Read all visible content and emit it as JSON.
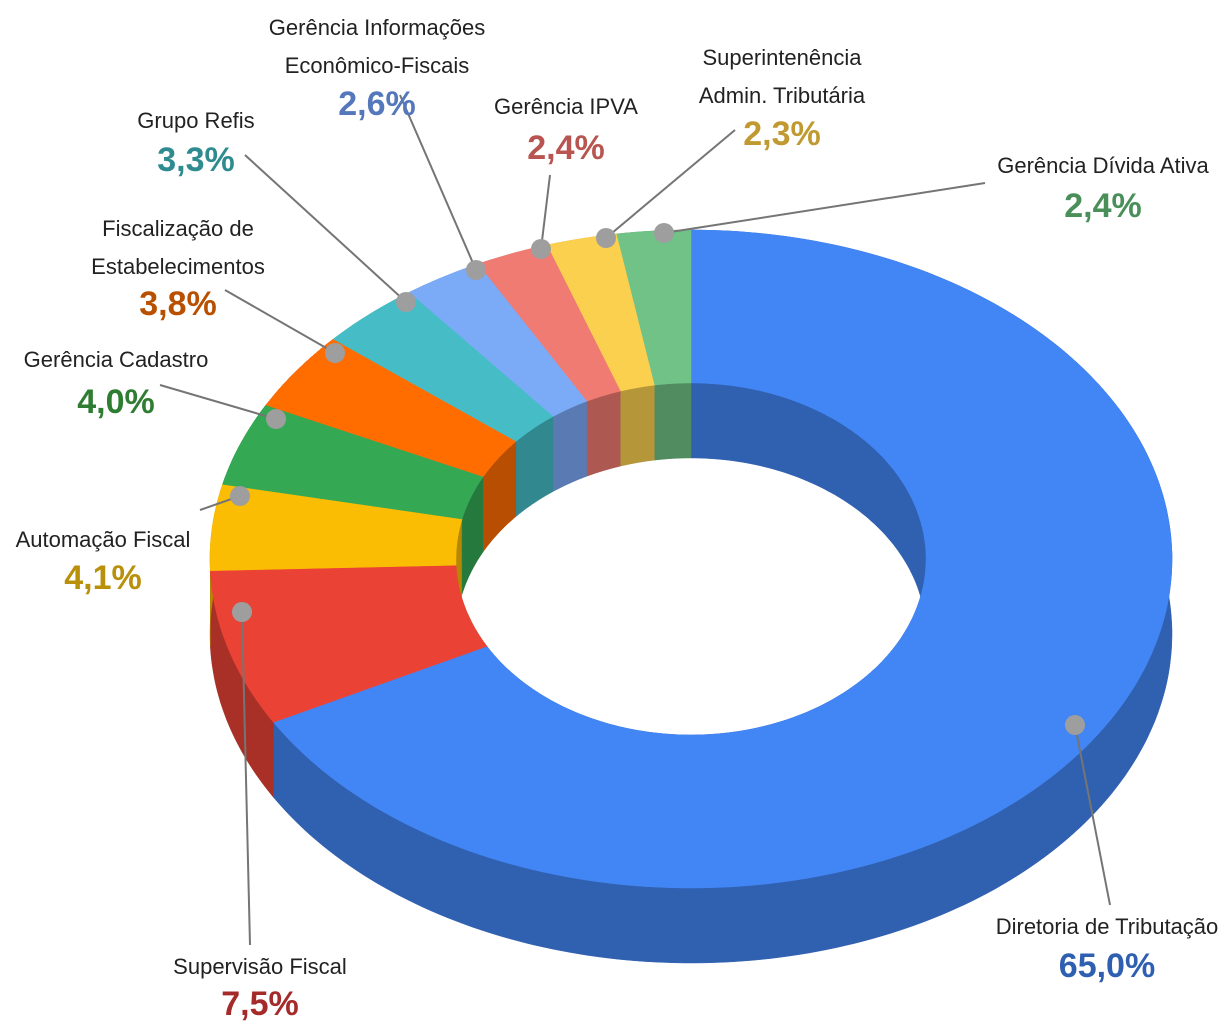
{
  "chart_data": {
    "type": "donut3d",
    "categories": [
      [
        "Diretoria de Tributação"
      ],
      [
        "Supervisão Fiscal"
      ],
      [
        "Automação Fiscal"
      ],
      [
        "Gerência Cadastro"
      ],
      [
        "Fiscalização de",
        "Estabelecimentos"
      ],
      [
        "Grupo Refis"
      ],
      [
        "Gerência Informações",
        "Econômico-Fiscais"
      ],
      [
        "Gerência IPVA"
      ],
      [
        "Superintenência",
        "Admin. Tributária"
      ],
      [
        "Gerência Dívida Ativa"
      ]
    ],
    "values": [
      65.0,
      7.5,
      4.1,
      4.0,
      3.8,
      3.3,
      2.6,
      2.4,
      2.3,
      2.4
    ],
    "value_labels": [
      "65,0%",
      "7,5%",
      "4,1%",
      "4,0%",
      "3,8%",
      "3,3%",
      "2,6%",
      "2,4%",
      "2,3%",
      "2,4%"
    ],
    "colors": [
      "#4285f4",
      "#ea4335",
      "#fbbc04",
      "#34a853",
      "#ff6d01",
      "#46bdc6",
      "#7baaf7",
      "#f07b72",
      "#fcd04f",
      "#71c287"
    ],
    "label_colors": [
      "#2f5fb0",
      "#a52a2a",
      "#b8900a",
      "#2e7d32",
      "#b85000",
      "#2e8b8f",
      "#5577bb",
      "#b85550",
      "#c09a30",
      "#4a8f5a"
    ]
  }
}
